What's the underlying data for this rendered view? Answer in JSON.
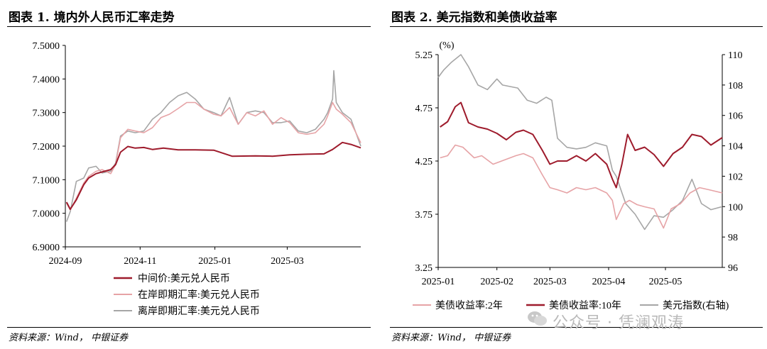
{
  "left": {
    "title": "图表 1. 境内外人民币汇率走势",
    "source": "资料来源：Wind， 中银证券",
    "chart_data": {
      "type": "line",
      "title": "境内外人民币汇率走势",
      "xlabel": "",
      "ylabel": "",
      "ylim": [
        6.9,
        7.5
      ],
      "xlim": [
        "2024-09-01",
        "2025-04-30"
      ],
      "y_ticks": [
        "6.9000",
        "7.0000",
        "7.1000",
        "7.2000",
        "7.3000",
        "7.4000",
        "7.5000"
      ],
      "x_ticks": [
        "2024-09",
        "2024-11",
        "2025-01",
        "2025-03"
      ],
      "grid": false,
      "legend": "bottom",
      "series": [
        {
          "name": "中间价:美元兑人民币",
          "color": "#9e1b2c",
          "x": [
            "2024-09-02",
            "2024-09-05",
            "2024-09-10",
            "2024-09-16",
            "2024-09-20",
            "2024-09-26",
            "2024-10-01",
            "2024-10-08",
            "2024-10-12",
            "2024-10-16",
            "2024-10-22",
            "2024-10-28",
            "2024-11-04",
            "2024-11-11",
            "2024-11-20",
            "2024-12-02",
            "2024-12-16",
            "2024-12-31",
            "2025-01-15",
            "2025-02-03",
            "2025-02-17",
            "2025-03-03",
            "2025-03-17",
            "2025-03-31",
            "2025-04-07",
            "2025-04-15",
            "2025-04-22",
            "2025-04-30"
          ],
          "values": [
            7.033,
            7.012,
            7.04,
            7.085,
            7.105,
            7.118,
            7.123,
            7.13,
            7.145,
            7.182,
            7.199,
            7.194,
            7.196,
            7.19,
            7.194,
            7.189,
            7.189,
            7.188,
            7.17,
            7.171,
            7.17,
            7.174,
            7.176,
            7.177,
            7.19,
            7.211,
            7.205,
            7.195
          ]
        },
        {
          "name": "在岸即期汇率:美元兑人民币",
          "color": "#e6a3a6",
          "x": [
            "2024-09-02",
            "2024-09-05",
            "2024-09-10",
            "2024-09-16",
            "2024-09-20",
            "2024-09-26",
            "2024-10-01",
            "2024-10-08",
            "2024-10-12",
            "2024-10-16",
            "2024-10-22",
            "2024-10-28",
            "2024-11-04",
            "2024-11-11",
            "2024-11-18",
            "2024-11-25",
            "2024-12-02",
            "2024-12-09",
            "2024-12-16",
            "2024-12-23",
            "2024-12-31",
            "2025-01-06",
            "2025-01-13",
            "2025-01-20",
            "2025-01-27",
            "2025-02-03",
            "2025-02-10",
            "2025-02-17",
            "2025-02-24",
            "2025-03-03",
            "2025-03-10",
            "2025-03-17",
            "2025-03-24",
            "2025-03-31",
            "2025-04-03",
            "2025-04-07",
            "2025-04-10",
            "2025-04-15",
            "2025-04-22",
            "2025-04-30"
          ],
          "values": [
            7.031,
            7.01,
            7.045,
            7.09,
            7.11,
            7.125,
            7.13,
            7.118,
            7.145,
            7.225,
            7.25,
            7.245,
            7.24,
            7.255,
            7.285,
            7.295,
            7.312,
            7.33,
            7.33,
            7.31,
            7.295,
            7.29,
            7.315,
            7.265,
            7.3,
            7.29,
            7.305,
            7.265,
            7.285,
            7.27,
            7.24,
            7.235,
            7.24,
            7.265,
            7.29,
            7.33,
            7.31,
            7.295,
            7.27,
            7.21
          ]
        },
        {
          "name": "离岸即期汇率:美元兑人民币",
          "color": "#a6a6a6",
          "x": [
            "2024-09-02",
            "2024-09-05",
            "2024-09-10",
            "2024-09-16",
            "2024-09-20",
            "2024-09-26",
            "2024-10-01",
            "2024-10-08",
            "2024-10-12",
            "2024-10-16",
            "2024-10-22",
            "2024-10-28",
            "2024-11-04",
            "2024-11-11",
            "2024-11-18",
            "2024-11-25",
            "2024-12-02",
            "2024-12-09",
            "2024-12-16",
            "2024-12-23",
            "2024-12-31",
            "2025-01-06",
            "2025-01-13",
            "2025-01-20",
            "2025-01-27",
            "2025-02-03",
            "2025-02-10",
            "2025-02-17",
            "2025-02-24",
            "2025-03-03",
            "2025-03-10",
            "2025-03-17",
            "2025-03-24",
            "2025-03-31",
            "2025-04-03",
            "2025-04-07",
            "2025-04-08",
            "2025-04-10",
            "2025-04-15",
            "2025-04-22",
            "2025-04-30"
          ],
          "values": [
            6.975,
            7.005,
            7.095,
            7.105,
            7.135,
            7.14,
            7.12,
            7.125,
            7.15,
            7.23,
            7.245,
            7.24,
            7.245,
            7.28,
            7.3,
            7.33,
            7.35,
            7.36,
            7.34,
            7.31,
            7.3,
            7.29,
            7.345,
            7.265,
            7.3,
            7.305,
            7.3,
            7.27,
            7.27,
            7.275,
            7.245,
            7.24,
            7.25,
            7.28,
            7.3,
            7.34,
            7.425,
            7.33,
            7.3,
            7.28,
            7.2
          ]
        }
      ]
    }
  },
  "right": {
    "title": "图表 2. 美元指数和美债收益率",
    "source": "资料来源：Wind， 中银证券",
    "unit_label": "(%)",
    "chart_data": {
      "type": "line",
      "title": "美元指数和美债收益率",
      "xlabel": "",
      "ylabel": "(%)",
      "ylim": [
        3.25,
        5.25
      ],
      "y2lim": [
        96,
        110
      ],
      "xlim": [
        "2025-01-01",
        "2025-05-31"
      ],
      "y_ticks": [
        "3.25",
        "3.75",
        "4.25",
        "4.75",
        "5.25"
      ],
      "y2_ticks": [
        "96",
        "98",
        "100",
        "102",
        "104",
        "106",
        "108",
        "110"
      ],
      "x_ticks": [
        "2025-01",
        "2025-02",
        "2025-03",
        "2025-04",
        "2025-05"
      ],
      "grid": false,
      "legend": "bottom",
      "series": [
        {
          "name": "美债收益率:2年",
          "axis": "left",
          "color": "#e6a3a6",
          "x": [
            "2025-01-02",
            "2025-01-06",
            "2025-01-10",
            "2025-01-14",
            "2025-01-20",
            "2025-01-24",
            "2025-01-30",
            "2025-02-05",
            "2025-02-11",
            "2025-02-15",
            "2025-02-20",
            "2025-02-25",
            "2025-03-01",
            "2025-03-05",
            "2025-03-10",
            "2025-03-15",
            "2025-03-20",
            "2025-03-25",
            "2025-03-31",
            "2025-04-03",
            "2025-04-05",
            "2025-04-09",
            "2025-04-12",
            "2025-04-16",
            "2025-04-20",
            "2025-04-25",
            "2025-04-30",
            "2025-05-04",
            "2025-05-09",
            "2025-05-14",
            "2025-05-19",
            "2025-05-24",
            "2025-05-31"
          ],
          "values": [
            4.28,
            4.3,
            4.4,
            4.38,
            4.28,
            4.3,
            4.22,
            4.26,
            4.3,
            4.32,
            4.28,
            4.12,
            4.0,
            3.98,
            3.95,
            4.0,
            3.98,
            4.0,
            3.95,
            3.88,
            3.7,
            3.85,
            3.88,
            3.84,
            3.82,
            3.8,
            3.62,
            3.8,
            3.85,
            3.95,
            4.0,
            3.98,
            3.95
          ]
        },
        {
          "name": "美债收益率:10年",
          "axis": "left",
          "color": "#9e1b2c",
          "x": [
            "2025-01-02",
            "2025-01-06",
            "2025-01-10",
            "2025-01-13",
            "2025-01-17",
            "2025-01-22",
            "2025-01-27",
            "2025-02-01",
            "2025-02-06",
            "2025-02-11",
            "2025-02-15",
            "2025-02-20",
            "2025-02-25",
            "2025-03-01",
            "2025-03-05",
            "2025-03-10",
            "2025-03-15",
            "2025-03-20",
            "2025-03-25",
            "2025-03-31",
            "2025-04-03",
            "2025-04-05",
            "2025-04-08",
            "2025-04-11",
            "2025-04-15",
            "2025-04-20",
            "2025-04-25",
            "2025-04-30",
            "2025-05-05",
            "2025-05-10",
            "2025-05-15",
            "2025-05-20",
            "2025-05-25",
            "2025-05-31"
          ],
          "values": [
            4.57,
            4.62,
            4.76,
            4.8,
            4.61,
            4.57,
            4.55,
            4.51,
            4.45,
            4.52,
            4.54,
            4.5,
            4.35,
            4.22,
            4.25,
            4.25,
            4.3,
            4.25,
            4.32,
            4.22,
            4.08,
            4.0,
            4.22,
            4.5,
            4.35,
            4.38,
            4.31,
            4.2,
            4.32,
            4.38,
            4.5,
            4.48,
            4.4,
            4.47
          ]
        },
        {
          "name": "美元指数(右轴)",
          "axis": "right",
          "color": "#a6a6a6",
          "x": [
            "2025-01-01",
            "2025-01-04",
            "2025-01-08",
            "2025-01-13",
            "2025-01-17",
            "2025-01-22",
            "2025-01-27",
            "2025-02-01",
            "2025-02-04",
            "2025-02-08",
            "2025-02-12",
            "2025-02-17",
            "2025-02-22",
            "2025-02-27",
            "2025-03-02",
            "2025-03-05",
            "2025-03-10",
            "2025-03-15",
            "2025-03-20",
            "2025-03-25",
            "2025-03-31",
            "2025-04-03",
            "2025-04-05",
            "2025-04-10",
            "2025-04-15",
            "2025-04-20",
            "2025-04-25",
            "2025-04-30",
            "2025-05-05",
            "2025-05-10",
            "2025-05-15",
            "2025-05-20",
            "2025-05-25",
            "2025-05-31"
          ],
          "values": [
            108.5,
            109.0,
            109.5,
            110.0,
            109.2,
            108.0,
            107.7,
            108.4,
            108.0,
            107.9,
            107.8,
            107.0,
            106.8,
            107.2,
            107.0,
            104.5,
            103.9,
            103.8,
            103.9,
            104.2,
            104.0,
            102.4,
            102.0,
            100.2,
            99.5,
            98.5,
            99.4,
            99.3,
            99.8,
            100.4,
            101.8,
            100.2,
            99.8,
            100.0
          ]
        }
      ]
    }
  },
  "watermark": {
    "text": "公众号 · 凭澜观涛"
  }
}
